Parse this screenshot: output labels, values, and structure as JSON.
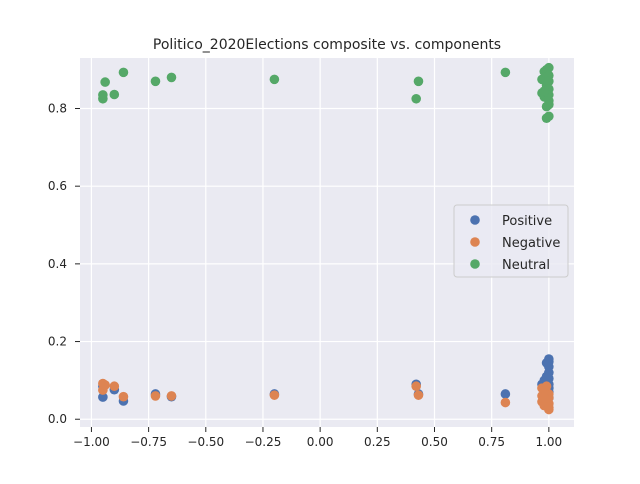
{
  "chart_data": {
    "type": "scatter",
    "title": "Politico_2020Elections composite vs. components",
    "xlabel": "",
    "ylabel": "",
    "xlim": [
      -1.05,
      1.11
    ],
    "ylim": [
      -0.02,
      0.93
    ],
    "xticks": [
      -1.0,
      -0.75,
      -0.5,
      -0.25,
      0.0,
      0.25,
      0.5,
      0.75,
      1.0
    ],
    "xtick_labels": [
      "−1.00",
      "−0.75",
      "−0.50",
      "−0.25",
      "0.00",
      "0.25",
      "0.50",
      "0.75",
      "1.00"
    ],
    "yticks": [
      0.0,
      0.2,
      0.4,
      0.6,
      0.8
    ],
    "ytick_labels": [
      "0.0",
      "0.2",
      "0.4",
      "0.6",
      "0.8"
    ],
    "grid": true,
    "legend_position": "center-right",
    "series": [
      {
        "name": "Positive",
        "color": "#4c72b0",
        "points": [
          [
            -0.95,
            0.057
          ],
          [
            -0.95,
            0.085
          ],
          [
            -0.9,
            0.076
          ],
          [
            -0.86,
            0.047
          ],
          [
            -0.72,
            0.065
          ],
          [
            -0.65,
            0.058
          ],
          [
            -0.2,
            0.065
          ],
          [
            0.42,
            0.09
          ],
          [
            0.43,
            0.065
          ],
          [
            0.81,
            0.065
          ],
          [
            0.97,
            0.09
          ],
          [
            0.98,
            0.08
          ],
          [
            0.98,
            0.1
          ],
          [
            0.99,
            0.095
          ],
          [
            0.99,
            0.11
          ],
          [
            0.99,
            0.145
          ],
          [
            1.0,
            0.155
          ],
          [
            1.0,
            0.148
          ],
          [
            1.0,
            0.135
          ],
          [
            1.0,
            0.12
          ],
          [
            1.0,
            0.105
          ],
          [
            1.0,
            0.09
          ],
          [
            1.0,
            0.08
          ],
          [
            1.0,
            0.07
          ],
          [
            0.99,
            0.06
          ],
          [
            1.0,
            0.055
          ],
          [
            0.98,
            0.07
          ]
        ]
      },
      {
        "name": "Negative",
        "color": "#dd8452",
        "points": [
          [
            -0.95,
            0.092
          ],
          [
            -0.95,
            0.075
          ],
          [
            -0.94,
            0.088
          ],
          [
            -0.9,
            0.085
          ],
          [
            -0.86,
            0.058
          ],
          [
            -0.72,
            0.06
          ],
          [
            -0.65,
            0.06
          ],
          [
            -0.2,
            0.062
          ],
          [
            0.42,
            0.085
          ],
          [
            0.43,
            0.062
          ],
          [
            0.81,
            0.043
          ],
          [
            0.97,
            0.06
          ],
          [
            0.97,
            0.045
          ],
          [
            0.98,
            0.075
          ],
          [
            0.98,
            0.035
          ],
          [
            0.99,
            0.065
          ],
          [
            0.99,
            0.05
          ],
          [
            0.99,
            0.04
          ],
          [
            1.0,
            0.03
          ],
          [
            1.0,
            0.025
          ],
          [
            1.0,
            0.04
          ],
          [
            1.0,
            0.055
          ],
          [
            1.0,
            0.065
          ],
          [
            0.98,
            0.055
          ],
          [
            0.99,
            0.085
          ],
          [
            0.97,
            0.08
          ]
        ]
      },
      {
        "name": "Neutral",
        "color": "#55a868",
        "points": [
          [
            -0.95,
            0.825
          ],
          [
            -0.95,
            0.835
          ],
          [
            -0.94,
            0.868
          ],
          [
            -0.9,
            0.836
          ],
          [
            -0.86,
            0.893
          ],
          [
            -0.72,
            0.87
          ],
          [
            -0.65,
            0.88
          ],
          [
            -0.2,
            0.875
          ],
          [
            0.42,
            0.825
          ],
          [
            0.43,
            0.87
          ],
          [
            0.81,
            0.893
          ],
          [
            0.97,
            0.84
          ],
          [
            0.97,
            0.875
          ],
          [
            0.98,
            0.895
          ],
          [
            0.98,
            0.83
          ],
          [
            0.99,
            0.9
          ],
          [
            0.99,
            0.86
          ],
          [
            0.99,
            0.805
          ],
          [
            1.0,
            0.905
          ],
          [
            1.0,
            0.885
          ],
          [
            1.0,
            0.87
          ],
          [
            1.0,
            0.85
          ],
          [
            1.0,
            0.835
          ],
          [
            1.0,
            0.82
          ],
          [
            1.0,
            0.78
          ],
          [
            0.99,
            0.775
          ],
          [
            0.98,
            0.845
          ],
          [
            1.0,
            0.81
          ]
        ]
      }
    ]
  }
}
